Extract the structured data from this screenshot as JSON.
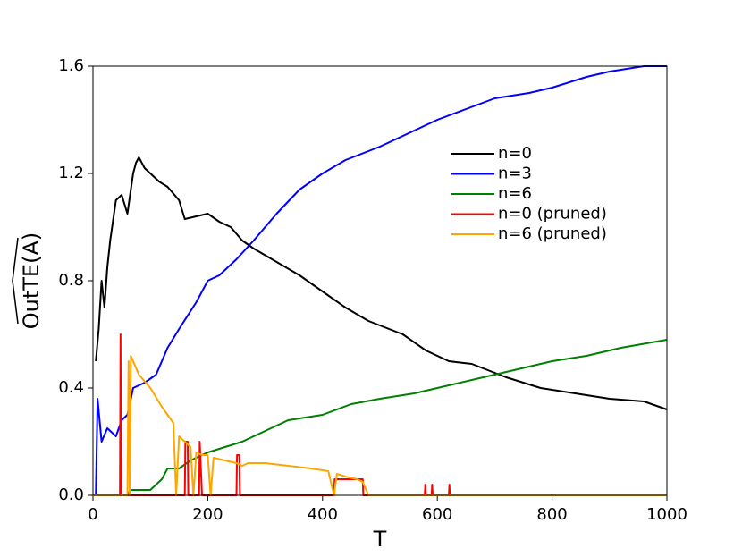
{
  "chart_data": {
    "type": "line",
    "xlabel": "T",
    "ylabel": "OutTE(A)",
    "xlim": [
      0,
      1000
    ],
    "ylim": [
      0,
      1.6
    ],
    "xticks": [
      0,
      200,
      400,
      600,
      800,
      1000
    ],
    "yticks": [
      {
        "value": 0,
        "label": "0.0"
      },
      0.4,
      0.8,
      1.2,
      1.6
    ],
    "legend": "upper right",
    "series": [
      {
        "name": "n=0",
        "color": "#000000",
        "x": [
          5,
          10,
          15,
          20,
          25,
          30,
          40,
          50,
          60,
          70,
          75,
          80,
          90,
          100,
          115,
          130,
          150,
          160,
          180,
          200,
          220,
          240,
          260,
          280,
          320,
          360,
          400,
          440,
          480,
          540,
          580,
          620,
          660,
          720,
          780,
          840,
          900,
          960,
          1000
        ],
        "values": [
          0.5,
          0.62,
          0.8,
          0.7,
          0.85,
          0.95,
          1.1,
          1.12,
          1.05,
          1.2,
          1.24,
          1.26,
          1.22,
          1.2,
          1.17,
          1.15,
          1.1,
          1.03,
          1.04,
          1.05,
          1.02,
          1.0,
          0.95,
          0.92,
          0.87,
          0.82,
          0.76,
          0.7,
          0.65,
          0.6,
          0.54,
          0.5,
          0.49,
          0.44,
          0.4,
          0.38,
          0.36,
          0.35,
          0.32
        ]
      },
      {
        "name": "n=3",
        "color": "#0000ff",
        "x": [
          5,
          8,
          15,
          25,
          40,
          50,
          60,
          70,
          90,
          110,
          130,
          150,
          180,
          200,
          220,
          250,
          280,
          320,
          360,
          400,
          440,
          500,
          560,
          600,
          650,
          700,
          760,
          800,
          860,
          900,
          960,
          1000
        ],
        "values": [
          0.0,
          0.36,
          0.2,
          0.25,
          0.22,
          0.28,
          0.3,
          0.4,
          0.42,
          0.45,
          0.55,
          0.62,
          0.72,
          0.8,
          0.82,
          0.88,
          0.95,
          1.05,
          1.14,
          1.2,
          1.25,
          1.3,
          1.36,
          1.4,
          1.44,
          1.48,
          1.5,
          1.52,
          1.56,
          1.58,
          1.6,
          1.6
        ]
      },
      {
        "name": "n=6",
        "color": "#008000",
        "x": [
          0,
          60,
          65,
          100,
          120,
          130,
          150,
          170,
          200,
          230,
          260,
          300,
          340,
          400,
          450,
          500,
          560,
          620,
          680,
          740,
          800,
          860,
          920,
          1000
        ],
        "values": [
          0.0,
          0.0,
          0.02,
          0.02,
          0.06,
          0.1,
          0.1,
          0.13,
          0.16,
          0.18,
          0.2,
          0.24,
          0.28,
          0.3,
          0.34,
          0.36,
          0.38,
          0.41,
          0.44,
          0.47,
          0.5,
          0.52,
          0.55,
          0.58
        ]
      },
      {
        "name": "n=0 (pruned)",
        "color": "#ff0000",
        "x": [
          0,
          47,
          48,
          49,
          160,
          161,
          165,
          166,
          185,
          186,
          190,
          250,
          251,
          255,
          256,
          420,
          421,
          470,
          471,
          578,
          579,
          580,
          590,
          591,
          592,
          620,
          621,
          622,
          1000
        ],
        "values": [
          0,
          0,
          0.6,
          0,
          0,
          0.2,
          0.2,
          0,
          0,
          0.2,
          0,
          0,
          0.15,
          0.15,
          0,
          0,
          0.06,
          0.06,
          0,
          0,
          0.04,
          0,
          0,
          0.04,
          0,
          0,
          0.04,
          0,
          0
        ]
      },
      {
        "name": "n=6 (pruned)",
        "color": "#ffa500",
        "x": [
          0,
          60,
          62,
          64,
          66,
          70,
          80,
          100,
          120,
          130,
          140,
          145,
          150,
          160,
          170,
          175,
          180,
          190,
          200,
          205,
          210,
          230,
          250,
          260,
          270,
          300,
          340,
          380,
          410,
          420,
          425,
          440,
          460,
          470,
          480,
          1000
        ],
        "values": [
          0,
          0,
          0.5,
          0,
          0.52,
          0.5,
          0.45,
          0.4,
          0.33,
          0.3,
          0.27,
          0,
          0.22,
          0.2,
          0.18,
          0,
          0.16,
          0.15,
          0.15,
          0,
          0.14,
          0.13,
          0.12,
          0.11,
          0.12,
          0.12,
          0.11,
          0.1,
          0.09,
          0,
          0.08,
          0.07,
          0.06,
          0.05,
          0,
          0
        ]
      }
    ]
  }
}
